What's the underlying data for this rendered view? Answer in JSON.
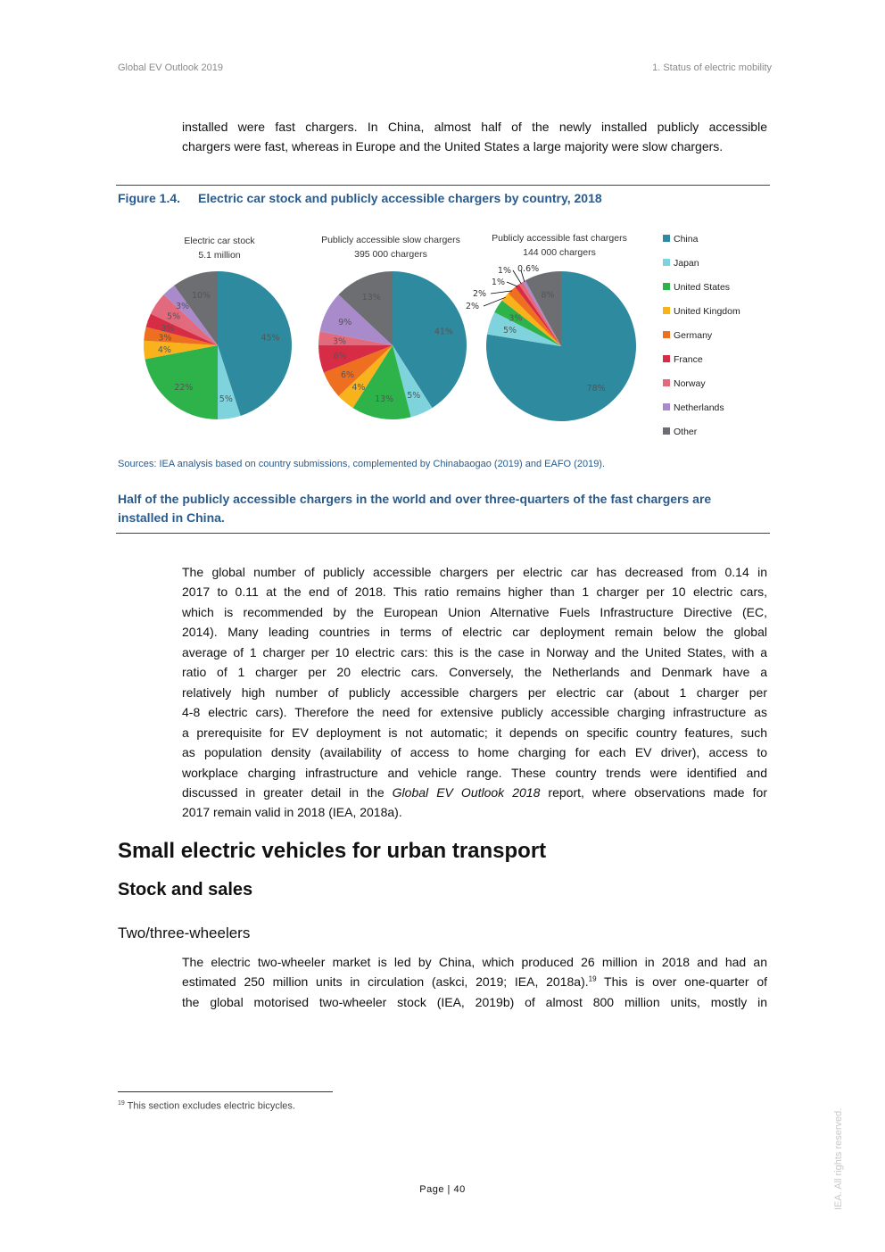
{
  "header": {
    "left": "Global EV Outlook 2019",
    "right": "1. Status of electric mobility"
  },
  "intro_lines": [
    "installed were fast chargers. In China, almost half of the newly installed publicly accessible",
    "chargers were fast, whereas in Europe and the United States a large majority were slow chargers."
  ],
  "figure": {
    "number": "Figure 1.4.",
    "title": "Electric car stock and publicly accessible chargers by country, 2018",
    "source": "Sources: IEA analysis based on country submissions, complemented by Chinabaogao (2019) and EAFO (2019).",
    "note": "Half of the publicly accessible chargers in the world and over three-quarters of the fast chargers are installed in China."
  },
  "chart_data": [
    {
      "type": "pie",
      "title": "Electric car stock",
      "subtitle": "5.1 million",
      "categories": [
        "China",
        "Japan",
        "United States",
        "United Kingdom",
        "Germany",
        "France",
        "Norway",
        "Netherlands",
        "Other"
      ],
      "values": [
        45,
        5,
        22,
        4,
        3,
        3,
        5,
        3,
        10
      ],
      "labels": [
        "45%",
        "5%",
        "22%",
        "4%",
        "3%",
        "3%",
        "5%",
        "3%",
        "10%"
      ]
    },
    {
      "type": "pie",
      "title": "Publicly accessible slow chargers",
      "subtitle": "395 000 chargers",
      "categories": [
        "China",
        "Japan",
        "United States",
        "United Kingdom",
        "Germany",
        "France",
        "Norway",
        "Netherlands",
        "Other"
      ],
      "values": [
        41,
        5,
        13,
        4,
        6,
        6,
        3,
        9,
        13
      ],
      "labels": [
        "41%",
        "5%",
        "13%",
        "4%",
        "6%",
        "6%",
        "3%",
        "9%",
        "13%"
      ]
    },
    {
      "type": "pie",
      "title": "Publicly accessible fast chargers",
      "subtitle": "144 000 chargers",
      "categories": [
        "China",
        "Japan",
        "United States",
        "United Kingdom",
        "Germany",
        "France",
        "Norway",
        "Netherlands",
        "Other"
      ],
      "values": [
        78,
        5,
        3,
        2,
        2,
        1,
        1,
        0.6,
        8
      ],
      "labels": [
        "78%",
        "5%",
        "3%",
        "2%",
        "2%",
        "1%",
        "1%",
        "0.6%",
        "8%"
      ]
    }
  ],
  "legend": [
    {
      "label": "China",
      "color": "#2e8a9e"
    },
    {
      "label": "Japan",
      "color": "#7fd3dd"
    },
    {
      "label": "United States",
      "color": "#2db34a"
    },
    {
      "label": "United Kingdom",
      "color": "#f8b21c"
    },
    {
      "label": "Germany",
      "color": "#ef6f20"
    },
    {
      "label": "France",
      "color": "#d72c45"
    },
    {
      "label": "Norway",
      "color": "#e26a7c"
    },
    {
      "label": "Netherlands",
      "color": "#a98acb"
    },
    {
      "label": "Other",
      "color": "#6d6e71"
    }
  ],
  "body_lines": [
    "The global number of publicly accessible chargers per electric car has decreased from 0.14 in",
    "2017 to 0.11 at the end of 2018. This ratio remains higher than 1 charger per 10 electric cars,",
    "which is recommended by the European Union Alternative Fuels Infrastructure Directive (EC,",
    "2014). Many leading countries in terms of electric car deployment remain below the global",
    "average of 1 charger per 10 electric cars: this is the case in Norway and the United States, with a",
    "ratio of 1 charger per 20 electric cars. Conversely, the Netherlands and Denmark have a",
    "relatively high number of publicly accessible chargers per electric car (about 1 charger per",
    "4-8 electric cars). Therefore the need for extensive publicly accessible charging infrastructure as",
    "a prerequisite for EV deployment is not automatic; it depends on specific country features, such",
    "as population density (availability of access to home charging for each EV driver), access to",
    "workplace charging infrastructure and vehicle range. These country trends were identified and"
  ],
  "body_line12": {
    "pre": "discussed in greater detail in the ",
    "italic": "Global EV Outlook 2018",
    "post": " report, where observations made for"
  },
  "body_last": "2017 remain valid in 2018 (IEA, 2018a).",
  "h1": "Small electric vehicles for urban transport",
  "h2": "Stock and sales",
  "h3": "Two/three-wheelers",
  "tw_lines": [
    "The electric two-wheeler market is led by China, which produced 26 million in 2018 and had an",
    "estimated 250 million units in circulation (askci, 2019; IEA, 2018a).",
    "the global motorised two-wheeler stock (IEA, 2019b) of almost 800 million units, mostly in"
  ],
  "tw_footref": "19",
  "tw_line2_post": " This is over one-quarter of",
  "footnote": {
    "num": "19",
    "text": " This section excludes electric bicycles."
  },
  "page": "Page | 40",
  "watermark": "IEA. All rights reserved."
}
